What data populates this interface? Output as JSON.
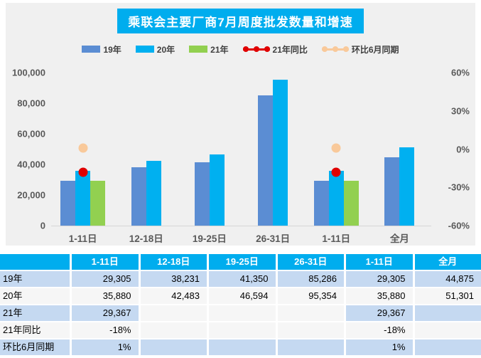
{
  "title": "乘联会主要厂商7月周度批发数量和增速",
  "colors": {
    "accent_blue": "#00ADEE",
    "bar_2019": "#5B8DD3",
    "bar_2020": "#00B0F0",
    "bar_2021": "#92D050",
    "point_yoy_2021": "#E00000",
    "point_mom_june": "#F9C99A",
    "table_row_blue": "#C5D9F1",
    "table_row_white": "#F6F6F6",
    "panel_bg": "#F0F0F0",
    "axis_text": "#595959"
  },
  "legend": [
    {
      "key": "y2019",
      "label": "19年",
      "type": "bar",
      "color": "#5B8DD3"
    },
    {
      "key": "y2020",
      "label": "20年",
      "type": "bar",
      "color": "#00B0F0"
    },
    {
      "key": "y2021",
      "label": "21年",
      "type": "bar",
      "color": "#92D050"
    },
    {
      "key": "yoy-2021",
      "label": "21年同比",
      "type": "line",
      "color": "#E00000"
    },
    {
      "key": "mom-june",
      "label": "环比6月同期",
      "type": "line",
      "color": "#F9C99A"
    }
  ],
  "chart_data": {
    "type": "bar",
    "title": "乘联会主要厂商7月周度批发数量和增速",
    "categories": [
      "1-11日",
      "12-18日",
      "19-25日",
      "26-31日",
      "1-11日",
      "全月"
    ],
    "series": [
      {
        "key": "y2019",
        "name": "19年",
        "type": "bar",
        "axis": "left",
        "color": "#5B8DD3",
        "values": [
          29305,
          38231,
          41350,
          85286,
          29305,
          44875
        ]
      },
      {
        "key": "y2020",
        "name": "20年",
        "type": "bar",
        "axis": "left",
        "color": "#00B0F0",
        "values": [
          35880,
          42483,
          46594,
          95354,
          35880,
          51301
        ]
      },
      {
        "key": "y2021",
        "name": "21年",
        "type": "bar",
        "axis": "left",
        "color": "#92D050",
        "values": [
          29367,
          null,
          null,
          null,
          29367,
          null
        ]
      },
      {
        "key": "yoy-2021",
        "name": "21年同比",
        "type": "point",
        "axis": "right",
        "color": "#E00000",
        "unit": "%",
        "values": [
          -18,
          null,
          null,
          null,
          -18,
          null
        ]
      },
      {
        "key": "mom-june",
        "name": "环比6月同期",
        "type": "point",
        "axis": "right",
        "color": "#F9C99A",
        "unit": "%",
        "values": [
          1,
          null,
          null,
          null,
          1,
          null
        ]
      }
    ],
    "left_axis": {
      "min": 0,
      "max": 100000,
      "ticks": [
        "100,000",
        "80,000",
        "60,000",
        "40,000",
        "20,000",
        "0"
      ]
    },
    "right_axis": {
      "min": -60,
      "max": 60,
      "ticks": [
        "60%",
        "30%",
        "0%",
        "-30%",
        "-60%"
      ]
    },
    "legend_position": "top",
    "grid": false
  },
  "table": {
    "headers": [
      "",
      "1-11日",
      "12-18日",
      "19-25日",
      "26-31日",
      "1-11日",
      "全月"
    ],
    "rows": [
      {
        "key": "y2019",
        "label": "19年",
        "cells": [
          "29,305",
          "38,231",
          "41,350",
          "85,286",
          "29,305",
          "44,875"
        ],
        "fills": [
          "b",
          "b",
          "b",
          "b",
          "b",
          "b",
          "b"
        ]
      },
      {
        "key": "y2020",
        "label": "20年",
        "cells": [
          "35,880",
          "42,483",
          "46,594",
          "95,354",
          "35,880",
          "51,301"
        ],
        "fills": [
          "w",
          "w",
          "w",
          "w",
          "w",
          "w",
          "w"
        ]
      },
      {
        "key": "y2021",
        "label": "21年",
        "cells": [
          "29,367",
          "",
          "",
          "",
          "29,367",
          ""
        ],
        "fills": [
          "b",
          "b",
          "w",
          "w",
          "w",
          "b",
          "b"
        ]
      },
      {
        "key": "yoy-2021",
        "label": "21年同比",
        "cells": [
          "-18%",
          "",
          "",
          "",
          "-18%",
          ""
        ],
        "fills": [
          "w",
          "w",
          "w",
          "w",
          "w",
          "w",
          "w"
        ]
      },
      {
        "key": "mom-june",
        "label": "环比6月同期",
        "cells": [
          "1%",
          "",
          "",
          "",
          "1%",
          ""
        ],
        "fills": [
          "b",
          "b",
          "b",
          "b",
          "b",
          "b",
          "b"
        ]
      }
    ]
  }
}
